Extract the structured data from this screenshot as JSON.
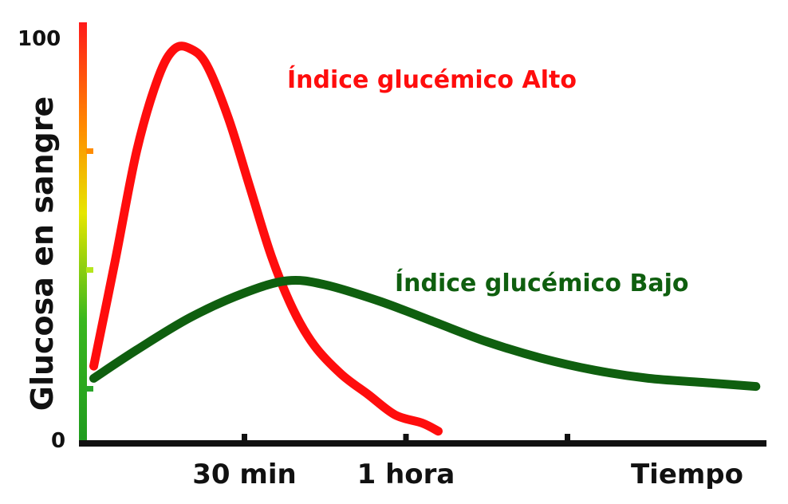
{
  "chart_data": {
    "type": "line",
    "ylabel": "Glucosa en sangre",
    "xlabel": "Tiempo",
    "ylim": [
      0,
      100
    ],
    "y_tick_labels": [
      {
        "value": 0,
        "label": "0"
      },
      {
        "value": 100,
        "label": "100"
      }
    ],
    "x_ticks": [
      {
        "value": 30,
        "label": "30 min"
      },
      {
        "value": 60,
        "label": "1 hora"
      },
      {
        "value": 90,
        "label": ""
      }
    ],
    "series": [
      {
        "name": "Índice glucémico Alto",
        "color": "#ff0d0d",
        "points": [
          [
            2,
            19
          ],
          [
            6,
            45
          ],
          [
            10,
            72
          ],
          [
            14,
            90
          ],
          [
            17,
            97
          ],
          [
            20,
            97
          ],
          [
            23,
            93
          ],
          [
            27,
            80
          ],
          [
            31,
            63
          ],
          [
            35,
            46
          ],
          [
            39,
            33
          ],
          [
            43,
            24
          ],
          [
            48,
            17
          ],
          [
            53,
            12
          ],
          [
            58,
            7
          ],
          [
            63,
            5
          ],
          [
            66,
            3
          ]
        ]
      },
      {
        "name": "Índice glucémico Bajo",
        "color": "#0f5f0f",
        "points": [
          [
            2,
            16
          ],
          [
            10,
            23
          ],
          [
            20,
            31
          ],
          [
            30,
            37
          ],
          [
            38,
            40
          ],
          [
            45,
            39
          ],
          [
            55,
            35
          ],
          [
            65,
            30
          ],
          [
            75,
            25
          ],
          [
            85,
            21
          ],
          [
            95,
            18
          ],
          [
            105,
            16
          ],
          [
            115,
            15
          ],
          [
            125,
            14
          ]
        ]
      }
    ],
    "axis_gradient": [
      "#1e9a1e",
      "#3ab81e",
      "#e6e600",
      "#ff8c00",
      "#ff1a1a"
    ]
  }
}
